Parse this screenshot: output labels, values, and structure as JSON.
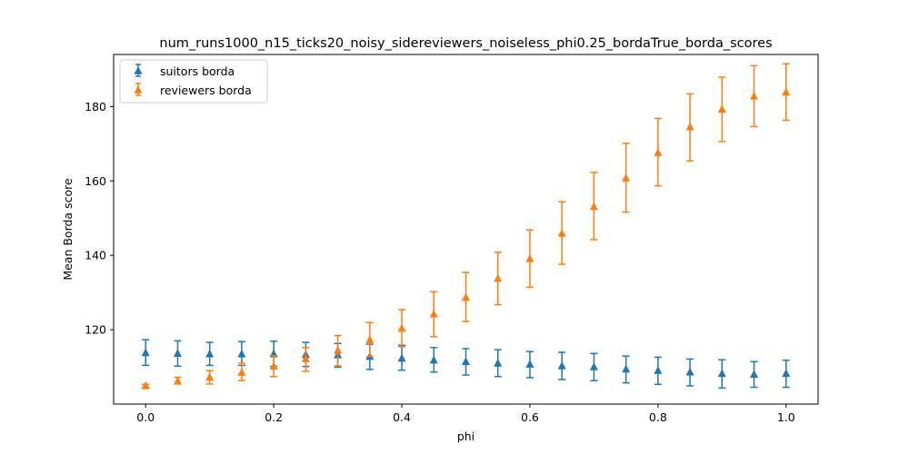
{
  "chart_data": {
    "type": "scatter",
    "title": "num_runs1000_n15_ticks20_noisy_sidereviewers_noiseless_phi0.25_bordaTrue_borda_scores",
    "xlabel": "phi",
    "ylabel": "Mean Borda score",
    "xlim": [
      -0.05,
      1.05
    ],
    "ylim": [
      100,
      194
    ],
    "xticks": [
      0.0,
      0.2,
      0.4,
      0.6,
      0.8,
      1.0
    ],
    "xtick_labels": [
      "0.0",
      "0.2",
      "0.4",
      "0.6",
      "0.8",
      "1.0"
    ],
    "yticks": [
      120,
      140,
      160,
      180
    ],
    "ytick_labels": [
      "120",
      "140",
      "160",
      "180"
    ],
    "grid": false,
    "legend_position": "top-left",
    "x": [
      0.0,
      0.05,
      0.1,
      0.15,
      0.2,
      0.25,
      0.3,
      0.35,
      0.4,
      0.45,
      0.5,
      0.55,
      0.6,
      0.65,
      0.7,
      0.75,
      0.8,
      0.85,
      0.9,
      0.95,
      1.0
    ],
    "series": [
      {
        "name": "suitors borda",
        "color": "#1f77b4",
        "marker": "triangle-up",
        "values": [
          113.8,
          113.6,
          113.5,
          113.5,
          113.5,
          113.3,
          113.2,
          112.8,
          112.3,
          111.8,
          111.4,
          111.0,
          110.7,
          110.3,
          110.0,
          109.4,
          109.0,
          108.6,
          108.2,
          108.0,
          108.2
        ],
        "err_low": [
          110.4,
          110.2,
          110.4,
          110.4,
          110.1,
          110.1,
          109.9,
          109.3,
          109.1,
          108.6,
          107.8,
          107.4,
          107.1,
          106.6,
          106.3,
          105.7,
          105.3,
          104.9,
          104.3,
          104.5,
          104.5
        ],
        "err_high": [
          117.3,
          117.0,
          116.6,
          116.8,
          116.9,
          116.6,
          116.3,
          116.1,
          115.8,
          115.2,
          114.9,
          114.6,
          114.1,
          113.9,
          113.6,
          112.9,
          112.6,
          112.1,
          111.9,
          111.4,
          111.8
        ]
      },
      {
        "name": "reviewers borda",
        "color": "#ff7f0e",
        "marker": "triangle-up",
        "values": [
          104.9,
          106.2,
          107.2,
          108.5,
          110.2,
          112.2,
          114.4,
          117.3,
          120.4,
          124.2,
          128.7,
          133.8,
          139.1,
          145.9,
          153.1,
          160.8,
          167.6,
          174.5,
          179.3,
          182.8,
          183.9
        ],
        "err_low": [
          104.5,
          105.4,
          105.4,
          106.3,
          107.4,
          108.8,
          110.3,
          112.8,
          115.4,
          118.1,
          122.2,
          126.7,
          131.4,
          137.6,
          144.2,
          151.6,
          158.7,
          165.4,
          170.6,
          174.6,
          176.3
        ],
        "err_high": [
          105.3,
          107.2,
          109.0,
          111.0,
          113.0,
          115.2,
          118.4,
          121.9,
          125.4,
          130.2,
          135.4,
          140.8,
          146.8,
          154.4,
          162.3,
          170.1,
          176.8,
          183.4,
          187.9,
          191.0,
          191.5
        ]
      }
    ]
  }
}
